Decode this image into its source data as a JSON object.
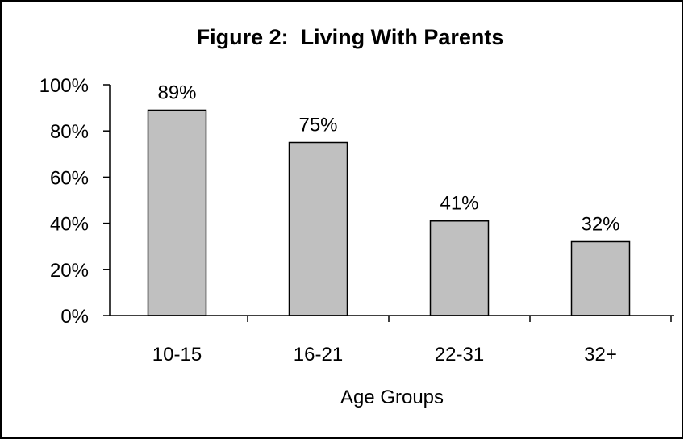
{
  "chart_data": {
    "type": "bar",
    "title": "Figure 2:  Living With Parents",
    "xlabel": "Age Groups",
    "ylabel": "",
    "categories": [
      "10-15",
      "16-21",
      "22-31",
      "32+"
    ],
    "values": [
      89,
      75,
      41,
      32
    ],
    "data_labels": [
      "89%",
      "75%",
      "41%",
      "32%"
    ],
    "ylim": [
      0,
      100
    ],
    "y_ticks": [
      0,
      20,
      40,
      60,
      80,
      100
    ],
    "y_tick_labels": [
      "0%",
      "20%",
      "40%",
      "60%",
      "80%",
      "100%"
    ],
    "grid": false,
    "legend": "none",
    "colors": {
      "bar_fill": "#c0c0c0",
      "bar_stroke": "#000000",
      "axis": "#000000",
      "frame": "#000000"
    }
  }
}
